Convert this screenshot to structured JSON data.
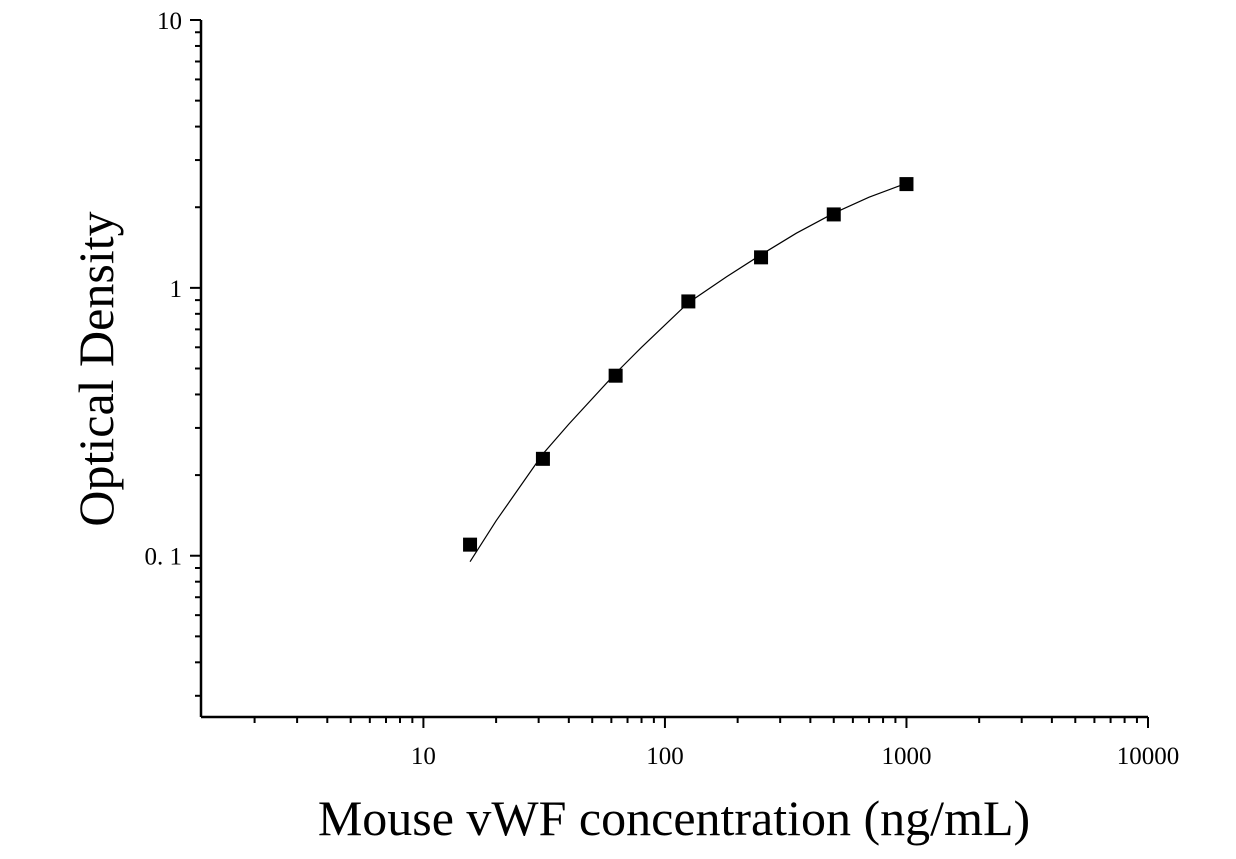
{
  "chart_data": {
    "type": "scatter",
    "xlabel": "Mouse vWF concentration (ng/mL)",
    "ylabel": "Optical Density",
    "xscale": "log",
    "yscale": "log",
    "xlim": [
      1.2,
      10000
    ],
    "ylim": [
      0.025,
      10
    ],
    "x_ticks": [
      {
        "value": 10,
        "label": "10"
      },
      {
        "value": 100,
        "label": "100"
      },
      {
        "value": 1000,
        "label": "1000"
      },
      {
        "value": 10000,
        "label": "10000"
      }
    ],
    "y_ticks": [
      {
        "value": 0.1,
        "label": "0. 1"
      },
      {
        "value": 1,
        "label": "1"
      },
      {
        "value": 10,
        "label": "10"
      }
    ],
    "series": [
      {
        "marker": "square",
        "x": [
          15.6,
          31.25,
          62.5,
          125,
          250,
          500,
          1000
        ],
        "y": [
          0.11,
          0.23,
          0.47,
          0.89,
          1.3,
          1.88,
          2.44
        ]
      }
    ],
    "fit_curve": {
      "x": [
        15.6,
        20,
        31.25,
        40,
        62.5,
        80,
        125,
        180,
        250,
        350,
        500,
        700,
        1000
      ],
      "y": [
        0.095,
        0.135,
        0.24,
        0.31,
        0.48,
        0.6,
        0.88,
        1.1,
        1.33,
        1.6,
        1.9,
        2.18,
        2.46
      ]
    },
    "color": "#000000"
  }
}
